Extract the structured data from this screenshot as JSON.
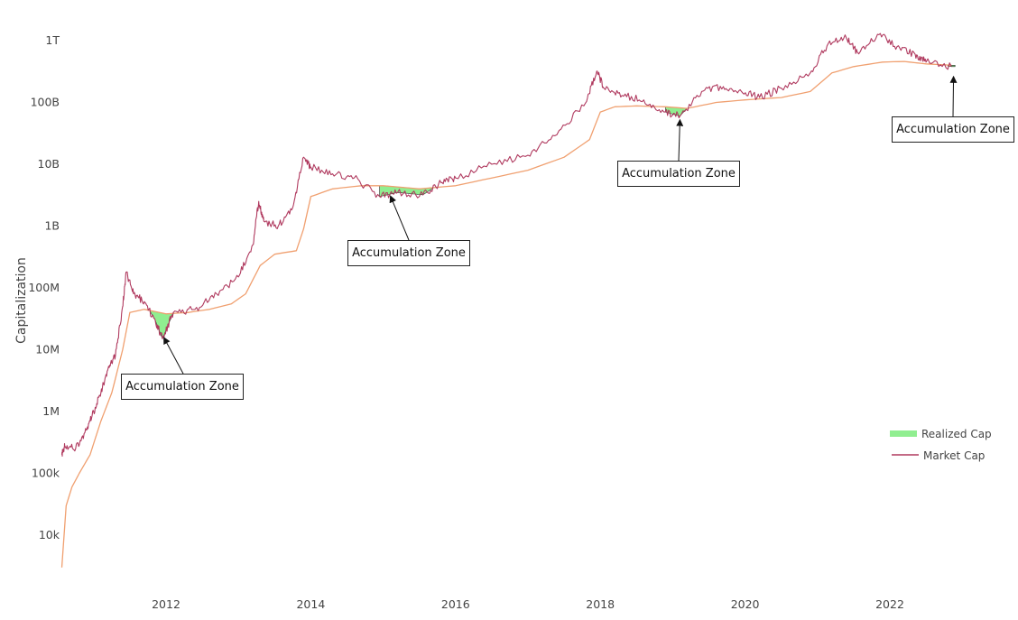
{
  "chart_data": {
    "type": "line",
    "title": "",
    "xlabel": "",
    "ylabel": "Capitalization",
    "y_scale": "log",
    "ylim": [
      3000,
      1500000000000
    ],
    "xlim": [
      2010.55,
      2022.95
    ],
    "x_ticks": [
      {
        "value": 2012,
        "label": "2012"
      },
      {
        "value": 2014,
        "label": "2014"
      },
      {
        "value": 2016,
        "label": "2016"
      },
      {
        "value": 2018,
        "label": "2018"
      },
      {
        "value": 2020,
        "label": "2020"
      },
      {
        "value": 2022,
        "label": "2022"
      }
    ],
    "y_ticks": [
      {
        "value": 10000,
        "label": "10k"
      },
      {
        "value": 100000,
        "label": "100k"
      },
      {
        "value": 1000000,
        "label": "1M"
      },
      {
        "value": 10000000,
        "label": "10M"
      },
      {
        "value": 100000000,
        "label": "100M"
      },
      {
        "value": 1000000000,
        "label": "1B"
      },
      {
        "value": 10000000000,
        "label": "10B"
      },
      {
        "value": 100000000000,
        "label": "100B"
      },
      {
        "value": 1000000000000,
        "label": "1T"
      }
    ],
    "grid": false,
    "legend_position": "bottom-right",
    "series": [
      {
        "name": "Realized Cap",
        "color": "#f0a070",
        "fill_color": "#90ee90",
        "points": [
          [
            2010.56,
            3000
          ],
          [
            2010.62,
            30000
          ],
          [
            2010.7,
            60000
          ],
          [
            2010.8,
            100000
          ],
          [
            2010.95,
            200000
          ],
          [
            2011.1,
            700000
          ],
          [
            2011.25,
            2000000
          ],
          [
            2011.4,
            10000000
          ],
          [
            2011.5,
            40000000
          ],
          [
            2011.7,
            45000000
          ],
          [
            2012.0,
            38000000
          ],
          [
            2012.3,
            40000000
          ],
          [
            2012.6,
            45000000
          ],
          [
            2012.9,
            55000000
          ],
          [
            2013.1,
            80000000
          ],
          [
            2013.3,
            230000000
          ],
          [
            2013.5,
            350000000
          ],
          [
            2013.8,
            400000000
          ],
          [
            2013.9,
            900000000
          ],
          [
            2014.0,
            3000000000
          ],
          [
            2014.3,
            4000000000
          ],
          [
            2014.7,
            4500000000
          ],
          [
            2015.0,
            4500000000
          ],
          [
            2015.5,
            4000000000
          ],
          [
            2016.0,
            4500000000
          ],
          [
            2016.5,
            6000000000
          ],
          [
            2017.0,
            8000000000
          ],
          [
            2017.5,
            13000000000
          ],
          [
            2017.85,
            25000000000
          ],
          [
            2018.0,
            70000000000
          ],
          [
            2018.2,
            85000000000
          ],
          [
            2018.5,
            88000000000
          ],
          [
            2018.9,
            85000000000
          ],
          [
            2019.2,
            80000000000
          ],
          [
            2019.6,
            100000000000
          ],
          [
            2020.0,
            110000000000
          ],
          [
            2020.5,
            120000000000
          ],
          [
            2020.9,
            150000000000
          ],
          [
            2021.2,
            300000000000
          ],
          [
            2021.5,
            380000000000
          ],
          [
            2021.9,
            450000000000
          ],
          [
            2022.2,
            460000000000
          ],
          [
            2022.5,
            420000000000
          ],
          [
            2022.85,
            400000000000
          ]
        ]
      },
      {
        "name": "Market Cap",
        "color": "#b03a5f",
        "points": [
          [
            2010.56,
            200000
          ],
          [
            2010.6,
            280000
          ],
          [
            2010.75,
            250000
          ],
          [
            2010.9,
            500000
          ],
          [
            2011.0,
            1000000
          ],
          [
            2011.1,
            2000000
          ],
          [
            2011.2,
            5000000
          ],
          [
            2011.3,
            8000000
          ],
          [
            2011.4,
            50000000
          ],
          [
            2011.45,
            180000000
          ],
          [
            2011.55,
            80000000
          ],
          [
            2011.7,
            60000000
          ],
          [
            2011.85,
            30000000
          ],
          [
            2011.95,
            15000000
          ],
          [
            2012.1,
            40000000
          ],
          [
            2012.4,
            45000000
          ],
          [
            2012.7,
            80000000
          ],
          [
            2013.0,
            150000000
          ],
          [
            2013.2,
            500000000
          ],
          [
            2013.28,
            2500000000
          ],
          [
            2013.35,
            1200000000
          ],
          [
            2013.55,
            1000000000
          ],
          [
            2013.75,
            2000000000
          ],
          [
            2013.9,
            13000000000
          ],
          [
            2014.0,
            9000000000
          ],
          [
            2014.3,
            7000000000
          ],
          [
            2014.6,
            6000000000
          ],
          [
            2014.95,
            3000000000
          ],
          [
            2015.2,
            3500000000
          ],
          [
            2015.55,
            3200000000
          ],
          [
            2015.8,
            5000000000
          ],
          [
            2016.0,
            6000000000
          ],
          [
            2016.5,
            10000000000
          ],
          [
            2017.0,
            14000000000
          ],
          [
            2017.4,
            30000000000
          ],
          [
            2017.8,
            100000000000
          ],
          [
            2017.95,
            320000000000
          ],
          [
            2018.05,
            170000000000
          ],
          [
            2018.3,
            130000000000
          ],
          [
            2018.6,
            110000000000
          ],
          [
            2018.9,
            70000000000
          ],
          [
            2019.1,
            60000000000
          ],
          [
            2019.4,
            150000000000
          ],
          [
            2019.7,
            180000000000
          ],
          [
            2019.95,
            150000000000
          ],
          [
            2020.2,
            120000000000
          ],
          [
            2020.5,
            170000000000
          ],
          [
            2020.9,
            300000000000
          ],
          [
            2021.15,
            900000000000
          ],
          [
            2021.4,
            1100000000000
          ],
          [
            2021.55,
            650000000000
          ],
          [
            2021.85,
            1250000000000
          ],
          [
            2022.1,
            800000000000
          ],
          [
            2022.35,
            600000000000
          ],
          [
            2022.5,
            450000000000
          ],
          [
            2022.85,
            380000000000
          ]
        ]
      }
    ],
    "accumulation_zones": [
      {
        "x_start": 2011.7,
        "x_end": 2012.15
      },
      {
        "x_start": 2014.95,
        "x_end": 2015.8
      },
      {
        "x_start": 2018.9,
        "x_end": 2019.2
      },
      {
        "x_start": 2022.8,
        "x_end": 2022.9
      }
    ],
    "annotations": [
      {
        "text": "Accumulation Zone",
        "x": 2011.97,
        "y": 18000000
      },
      {
        "text": "Accumulation Zone",
        "x": 2015.1,
        "y": 3500000000
      },
      {
        "text": "Accumulation Zone",
        "x": 2019.1,
        "y": 60000000000
      },
      {
        "text": "Accumulation Zone",
        "x": 2022.88,
        "y": 300000000000
      }
    ]
  }
}
